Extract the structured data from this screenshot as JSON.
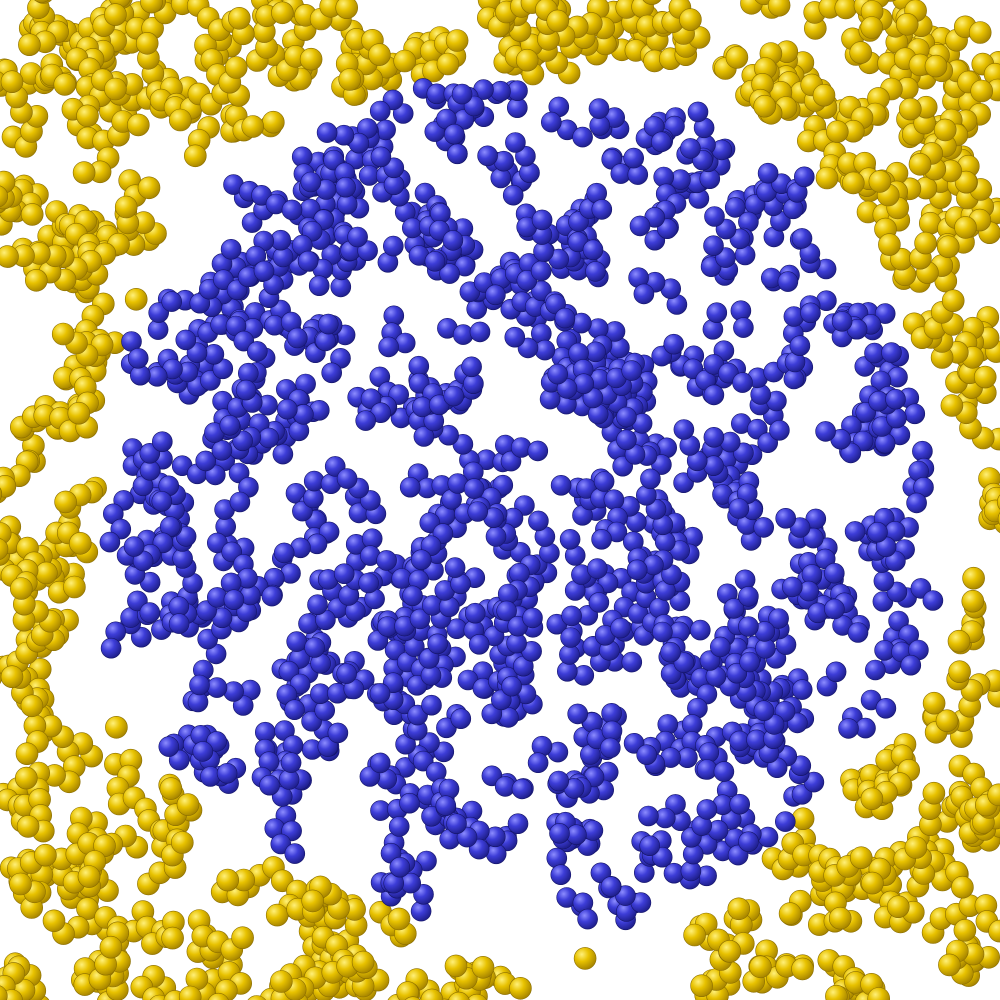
{
  "scene": {
    "background": "#ffffff",
    "groups": [
      {
        "name": "yellow-particles",
        "region": "outside-droplet",
        "colors": {
          "base": "#e8c200",
          "highlight": "#fff07a",
          "shade": "#a88600"
        }
      },
      {
        "name": "blue-particles",
        "region": "inside-droplet",
        "colors": {
          "base": "#3d3dd8",
          "highlight": "#8d8dff",
          "shade": "#1f1f8c"
        }
      }
    ]
  }
}
